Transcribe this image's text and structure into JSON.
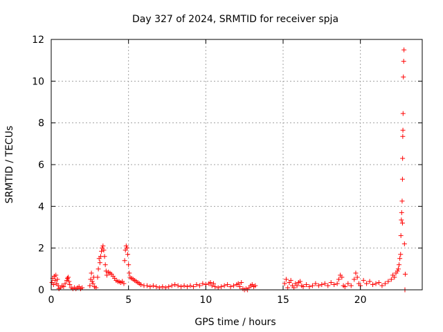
{
  "chart_data": {
    "type": "scatter",
    "title": "Day 327 of 2024, SRMTID for receiver spja",
    "xlabel": "GPS time / hours",
    "ylabel": "SRMTID / TECUs",
    "xlim": [
      0,
      24
    ],
    "ylim": [
      0,
      12
    ],
    "xticks": [
      0,
      5,
      10,
      15,
      20
    ],
    "yticks": [
      0,
      2,
      4,
      6,
      8,
      10,
      12
    ],
    "grid": true,
    "marker": "+",
    "series": [
      {
        "color": "#ff0000",
        "points": [
          [
            0.05,
            0.35
          ],
          [
            0.1,
            0.55
          ],
          [
            0.15,
            0.25
          ],
          [
            0.2,
            0.65
          ],
          [
            0.25,
            0.45
          ],
          [
            0.3,
            0.7
          ],
          [
            0.35,
            0.3
          ],
          [
            0.4,
            0.5
          ],
          [
            0.45,
            0.2
          ],
          [
            0.5,
            0.05
          ],
          [
            0.6,
            0.1
          ],
          [
            0.7,
            0.2
          ],
          [
            0.8,
            0.15
          ],
          [
            0.9,
            0.3
          ],
          [
            1.0,
            0.45
          ],
          [
            1.05,
            0.55
          ],
          [
            1.1,
            0.6
          ],
          [
            1.15,
            0.4
          ],
          [
            1.2,
            0.25
          ],
          [
            1.3,
            0.1
          ],
          [
            1.4,
            0.05
          ],
          [
            1.5,
            0.1
          ],
          [
            1.6,
            0.05
          ],
          [
            1.7,
            0.1
          ],
          [
            1.8,
            0.15
          ],
          [
            1.9,
            0.05
          ],
          [
            2.0,
            0.1
          ],
          [
            2.5,
            0.2
          ],
          [
            2.55,
            0.5
          ],
          [
            2.6,
            0.8
          ],
          [
            2.65,
            0.4
          ],
          [
            2.7,
            0.3
          ],
          [
            2.75,
            0.6
          ],
          [
            2.8,
            0.15
          ],
          [
            2.9,
            0.1
          ],
          [
            3.0,
            0.6
          ],
          [
            3.05,
            1.0
          ],
          [
            3.1,
            1.5
          ],
          [
            3.15,
            1.3
          ],
          [
            3.2,
            1.6
          ],
          [
            3.25,
            1.85
          ],
          [
            3.3,
            2.0
          ],
          [
            3.35,
            2.1
          ],
          [
            3.4,
            1.9
          ],
          [
            3.45,
            1.6
          ],
          [
            3.5,
            1.2
          ],
          [
            3.55,
            0.9
          ],
          [
            3.6,
            0.7
          ],
          [
            3.7,
            0.85
          ],
          [
            3.8,
            0.8
          ],
          [
            3.9,
            0.75
          ],
          [
            4.0,
            0.65
          ],
          [
            4.1,
            0.55
          ],
          [
            4.2,
            0.45
          ],
          [
            4.3,
            0.4
          ],
          [
            4.4,
            0.38
          ],
          [
            4.5,
            0.35
          ],
          [
            4.6,
            0.4
          ],
          [
            4.7,
            0.3
          ],
          [
            4.75,
            1.4
          ],
          [
            4.8,
            1.9
          ],
          [
            4.85,
            2.1
          ],
          [
            4.9,
            2.0
          ],
          [
            4.95,
            1.7
          ],
          [
            5.0,
            1.2
          ],
          [
            5.05,
            0.8
          ],
          [
            5.1,
            0.6
          ],
          [
            5.2,
            0.55
          ],
          [
            5.3,
            0.5
          ],
          [
            5.4,
            0.45
          ],
          [
            5.5,
            0.4
          ],
          [
            5.6,
            0.35
          ],
          [
            5.7,
            0.3
          ],
          [
            5.8,
            0.25
          ],
          [
            6.0,
            0.2
          ],
          [
            6.2,
            0.2
          ],
          [
            6.4,
            0.15
          ],
          [
            6.6,
            0.2
          ],
          [
            6.8,
            0.15
          ],
          [
            7.0,
            0.1
          ],
          [
            7.2,
            0.15
          ],
          [
            7.4,
            0.1
          ],
          [
            7.6,
            0.15
          ],
          [
            7.8,
            0.2
          ],
          [
            8.0,
            0.25
          ],
          [
            8.2,
            0.2
          ],
          [
            8.4,
            0.15
          ],
          [
            8.6,
            0.2
          ],
          [
            8.8,
            0.15
          ],
          [
            9.0,
            0.2
          ],
          [
            9.2,
            0.15
          ],
          [
            9.4,
            0.25
          ],
          [
            9.6,
            0.2
          ],
          [
            9.8,
            0.3
          ],
          [
            10.0,
            0.25
          ],
          [
            10.2,
            0.3
          ],
          [
            10.3,
            0.35
          ],
          [
            10.4,
            0.2
          ],
          [
            10.5,
            0.3
          ],
          [
            10.6,
            0.15
          ],
          [
            10.8,
            0.1
          ],
          [
            11.0,
            0.15
          ],
          [
            11.2,
            0.2
          ],
          [
            11.4,
            0.25
          ],
          [
            11.6,
            0.15
          ],
          [
            11.8,
            0.2
          ],
          [
            12.0,
            0.25
          ],
          [
            12.1,
            0.3
          ],
          [
            12.2,
            0.15
          ],
          [
            12.3,
            0.35
          ],
          [
            12.4,
            0.05
          ],
          [
            12.5,
            0.0
          ],
          [
            12.6,
            0.05
          ],
          [
            12.7,
            0.0
          ],
          [
            12.8,
            0.1
          ],
          [
            12.9,
            0.2
          ],
          [
            13.0,
            0.25
          ],
          [
            13.1,
            0.15
          ],
          [
            13.2,
            0.2
          ],
          [
            15.1,
            0.3
          ],
          [
            15.2,
            0.5
          ],
          [
            15.3,
            0.1
          ],
          [
            15.4,
            0.35
          ],
          [
            15.5,
            0.45
          ],
          [
            15.6,
            0.2
          ],
          [
            15.7,
            0.1
          ],
          [
            15.8,
            0.3
          ],
          [
            15.9,
            0.2
          ],
          [
            16.0,
            0.35
          ],
          [
            16.1,
            0.4
          ],
          [
            16.2,
            0.2
          ],
          [
            16.3,
            0.15
          ],
          [
            16.5,
            0.25
          ],
          [
            16.7,
            0.15
          ],
          [
            16.9,
            0.2
          ],
          [
            17.1,
            0.3
          ],
          [
            17.3,
            0.2
          ],
          [
            17.5,
            0.25
          ],
          [
            17.7,
            0.3
          ],
          [
            17.9,
            0.2
          ],
          [
            18.1,
            0.35
          ],
          [
            18.3,
            0.25
          ],
          [
            18.5,
            0.3
          ],
          [
            18.6,
            0.5
          ],
          [
            18.7,
            0.7
          ],
          [
            18.8,
            0.6
          ],
          [
            18.9,
            0.2
          ],
          [
            19.0,
            0.15
          ],
          [
            19.2,
            0.3
          ],
          [
            19.4,
            0.2
          ],
          [
            19.6,
            0.5
          ],
          [
            19.7,
            0.8
          ],
          [
            19.8,
            0.6
          ],
          [
            19.9,
            0.3
          ],
          [
            20.0,
            0.2
          ],
          [
            20.2,
            0.45
          ],
          [
            20.4,
            0.3
          ],
          [
            20.6,
            0.4
          ],
          [
            20.8,
            0.25
          ],
          [
            21.0,
            0.3
          ],
          [
            21.2,
            0.35
          ],
          [
            21.4,
            0.2
          ],
          [
            21.6,
            0.3
          ],
          [
            21.8,
            0.4
          ],
          [
            22.0,
            0.5
          ],
          [
            22.1,
            0.7
          ],
          [
            22.2,
            0.6
          ],
          [
            22.3,
            0.8
          ],
          [
            22.4,
            0.9
          ],
          [
            22.45,
            1.0
          ],
          [
            22.5,
            1.2
          ],
          [
            22.55,
            1.5
          ],
          [
            22.6,
            1.7
          ],
          [
            22.62,
            2.6
          ],
          [
            22.65,
            3.35
          ],
          [
            22.67,
            3.7
          ],
          [
            22.7,
            4.25
          ],
          [
            22.72,
            5.3
          ],
          [
            22.73,
            6.3
          ],
          [
            22.74,
            7.35
          ],
          [
            22.75,
            7.65
          ],
          [
            22.76,
            8.45
          ],
          [
            22.78,
            10.2
          ],
          [
            22.8,
            10.95
          ],
          [
            22.82,
            11.5
          ],
          [
            22.72,
            3.2
          ],
          [
            22.85,
            2.2
          ],
          [
            22.9,
            0.75
          ],
          [
            22.88,
            0.0
          ]
        ]
      }
    ]
  }
}
